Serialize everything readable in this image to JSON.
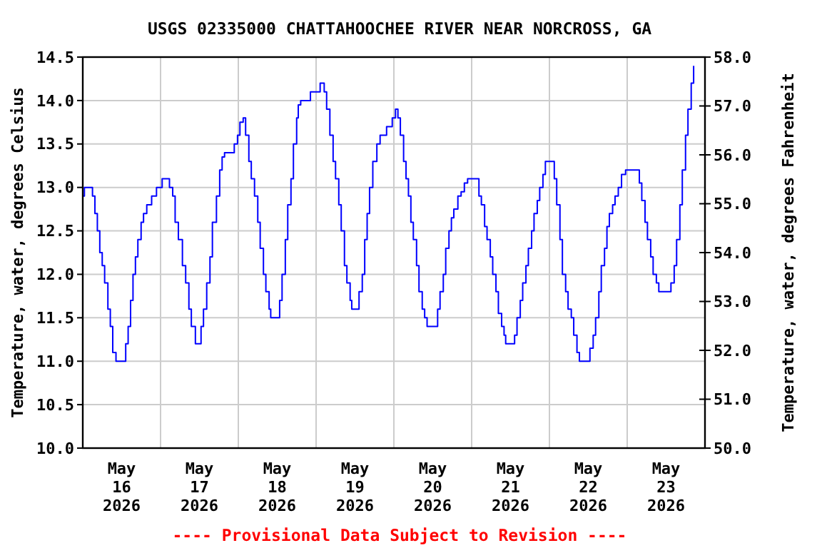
{
  "chart_data": {
    "type": "step",
    "title": "USGS 02335000 CHATTAHOOCHEE RIVER NEAR NORCROSS, GA",
    "ylabel": "Temperature, water, degrees Celsius",
    "y2label": "Temperature, water, degrees Fahrenheit",
    "annotations": [
      "---- Provisional Data Subject to Revision ----"
    ],
    "xlim": [
      "2026-05-16T00:00",
      "2026-05-24T00:00"
    ],
    "xticks": [
      {
        "value": "2026-05-16T12:00",
        "label": "May\n16\n2026"
      },
      {
        "value": "2026-05-17T00:00",
        "label": null
      },
      {
        "value": "2026-05-17T12:00",
        "label": "May\n17\n2026"
      },
      {
        "value": "2026-05-18T00:00",
        "label": null
      },
      {
        "value": "2026-05-18T12:00",
        "label": "May\n18\n2026"
      },
      {
        "value": "2026-05-19T00:00",
        "label": null
      },
      {
        "value": "2026-05-19T12:00",
        "label": "May\n19\n2026"
      },
      {
        "value": "2026-05-20T00:00",
        "label": null
      },
      {
        "value": "2026-05-20T12:00",
        "label": "May\n20\n2026"
      },
      {
        "value": "2026-05-21T00:00",
        "label": null
      },
      {
        "value": "2026-05-21T12:00",
        "label": "May\n21\n2026"
      },
      {
        "value": "2026-05-22T00:00",
        "label": null
      },
      {
        "value": "2026-05-22T12:00",
        "label": "May\n22\n2026"
      },
      {
        "value": "2026-05-23T00:00",
        "label": null
      },
      {
        "value": "2026-05-23T12:00",
        "label": "May\n23\n2026"
      }
    ],
    "ylim": [
      10.0,
      14.5
    ],
    "yticks": [
      {
        "value": 10,
        "label": "10.0"
      },
      10.5,
      {
        "value": 11,
        "label": "11.0"
      },
      11.5,
      {
        "value": 12,
        "label": "12.0"
      },
      12.5,
      {
        "value": 13,
        "label": "13.0"
      },
      13.5,
      {
        "value": 14,
        "label": "14.0"
      },
      14.5
    ],
    "y2lim": [
      50.0,
      58.0
    ],
    "y2ticks": [
      {
        "value": 50,
        "label": "50.0"
      },
      {
        "value": 51,
        "label": "51.0"
      },
      {
        "value": 52,
        "label": "52.0"
      },
      {
        "value": 53,
        "label": "53.0"
      },
      {
        "value": 54,
        "label": "54.0"
      },
      {
        "value": 55,
        "label": "55.0"
      },
      {
        "value": 56,
        "label": "56.0"
      },
      {
        "value": 57,
        "label": "57.0"
      },
      {
        "value": 58,
        "label": "58.0"
      }
    ],
    "grid": true,
    "series": [
      {
        "color": "#0000ff",
        "x": [
          "2026-05-16T00:00",
          "2026-05-16T00:30",
          "2026-05-16T02:15",
          "2026-05-16T03:00",
          "2026-05-16T03:45",
          "2026-05-16T04:30",
          "2026-05-16T05:15",
          "2026-05-16T06:00",
          "2026-05-16T06:45",
          "2026-05-16T07:45",
          "2026-05-16T08:30",
          "2026-05-16T09:15",
          "2026-05-16T10:15",
          "2026-05-16T12:15",
          "2026-05-16T13:15",
          "2026-05-16T14:00",
          "2026-05-16T14:45",
          "2026-05-16T15:30",
          "2026-05-16T16:15",
          "2026-05-16T17:00",
          "2026-05-16T18:00",
          "2026-05-16T18:45",
          "2026-05-16T19:45",
          "2026-05-16T21:15",
          "2026-05-16T22:45",
          "2026-05-17T00:30",
          "2026-05-17T01:45",
          "2026-05-17T02:45",
          "2026-05-17T03:45",
          "2026-05-17T04:30",
          "2026-05-17T05:30",
          "2026-05-17T06:45",
          "2026-05-17T07:45",
          "2026-05-17T08:45",
          "2026-05-17T09:30",
          "2026-05-17T10:45",
          "2026-05-17T11:30",
          "2026-05-17T12:30",
          "2026-05-17T13:15",
          "2026-05-17T14:15",
          "2026-05-17T15:15",
          "2026-05-17T16:00",
          "2026-05-17T17:15",
          "2026-05-17T18:15",
          "2026-05-17T19:00",
          "2026-05-17T19:45",
          "2026-05-17T21:30",
          "2026-05-17T22:45",
          "2026-05-17T23:45",
          "2026-05-18T00:30",
          "2026-05-18T01:30",
          "2026-05-18T02:15",
          "2026-05-18T03:15",
          "2026-05-18T04:00",
          "2026-05-18T05:00",
          "2026-05-18T06:00",
          "2026-05-18T06:45",
          "2026-05-18T07:45",
          "2026-05-18T08:30",
          "2026-05-18T09:30",
          "2026-05-18T10:00",
          "2026-05-18T11:45",
          "2026-05-18T12:45",
          "2026-05-18T13:30",
          "2026-05-18T14:30",
          "2026-05-18T15:15",
          "2026-05-18T16:15",
          "2026-05-18T17:00",
          "2026-05-18T18:00",
          "2026-05-18T18:30",
          "2026-05-18T19:15",
          "2026-05-18T21:45",
          "2026-05-18T22:15",
          "2026-05-19T00:30",
          "2026-05-19T01:15",
          "2026-05-19T02:00",
          "2026-05-19T02:30",
          "2026-05-19T03:15",
          "2026-05-19T04:15",
          "2026-05-19T05:15",
          "2026-05-19T06:00",
          "2026-05-19T07:00",
          "2026-05-19T07:45",
          "2026-05-19T08:45",
          "2026-05-19T09:30",
          "2026-05-19T10:30",
          "2026-05-19T11:00",
          "2026-05-19T12:30",
          "2026-05-19T13:15",
          "2026-05-19T14:15",
          "2026-05-19T15:00",
          "2026-05-19T15:45",
          "2026-05-19T16:30",
          "2026-05-19T17:30",
          "2026-05-19T18:45",
          "2026-05-19T19:45",
          "2026-05-19T21:45",
          "2026-05-19T23:30",
          "2026-05-20T00:30",
          "2026-05-20T01:15",
          "2026-05-20T02:00",
          "2026-05-20T03:00",
          "2026-05-20T03:45",
          "2026-05-20T04:30",
          "2026-05-20T05:15",
          "2026-05-20T06:00",
          "2026-05-20T07:00",
          "2026-05-20T07:45",
          "2026-05-20T08:45",
          "2026-05-20T09:30",
          "2026-05-20T10:15",
          "2026-05-20T12:30",
          "2026-05-20T13:30",
          "2026-05-20T14:15",
          "2026-05-20T15:15",
          "2026-05-20T16:00",
          "2026-05-20T17:00",
          "2026-05-20T17:45",
          "2026-05-20T18:30",
          "2026-05-20T19:45",
          "2026-05-20T20:45",
          "2026-05-20T21:45",
          "2026-05-20T22:45",
          "2026-05-21T01:15",
          "2026-05-21T02:15",
          "2026-05-21T03:00",
          "2026-05-21T04:00",
          "2026-05-21T04:45",
          "2026-05-21T05:45",
          "2026-05-21T06:30",
          "2026-05-21T07:30",
          "2026-05-21T08:15",
          "2026-05-21T09:15",
          "2026-05-21T10:00",
          "2026-05-21T10:30",
          "2026-05-21T12:30",
          "2026-05-21T13:15",
          "2026-05-21T14:00",
          "2026-05-21T15:00",
          "2026-05-21T15:45",
          "2026-05-21T16:45",
          "2026-05-21T17:30",
          "2026-05-21T18:30",
          "2026-05-21T19:15",
          "2026-05-21T20:15",
          "2026-05-21T21:00",
          "2026-05-21T22:00",
          "2026-05-21T22:45",
          "2026-05-22T00:30",
          "2026-05-22T01:30",
          "2026-05-22T02:15",
          "2026-05-22T03:15",
          "2026-05-22T04:00",
          "2026-05-22T05:00",
          "2026-05-22T05:45",
          "2026-05-22T06:45",
          "2026-05-22T07:30",
          "2026-05-22T08:30",
          "2026-05-22T09:15",
          "2026-05-22T11:30",
          "2026-05-22T12:30",
          "2026-05-22T13:30",
          "2026-05-22T14:15",
          "2026-05-22T15:15",
          "2026-05-22T16:00",
          "2026-05-22T17:00",
          "2026-05-22T17:45",
          "2026-05-22T18:30",
          "2026-05-22T19:30",
          "2026-05-22T20:15",
          "2026-05-22T21:15",
          "2026-05-22T22:15",
          "2026-05-22T23:30",
          "2026-05-23T02:45",
          "2026-05-23T03:45",
          "2026-05-23T04:30",
          "2026-05-23T05:30",
          "2026-05-23T06:15",
          "2026-05-23T07:15",
          "2026-05-23T08:00",
          "2026-05-23T09:00",
          "2026-05-23T09:45",
          "2026-05-23T12:45",
          "2026-05-23T13:30",
          "2026-05-23T14:30",
          "2026-05-23T15:15",
          "2026-05-23T16:15",
          "2026-05-23T17:00",
          "2026-05-23T18:00",
          "2026-05-23T18:45",
          "2026-05-23T19:45",
          "2026-05-23T20:30"
        ],
        "values": [
          12.9,
          13.0,
          13.0,
          12.9,
          12.7,
          12.5,
          12.25,
          12.1,
          11.9,
          11.6,
          11.4,
          11.1,
          11.0,
          11.0,
          11.2,
          11.4,
          11.7,
          12.0,
          12.2,
          12.4,
          12.6,
          12.7,
          12.8,
          12.9,
          13.0,
          13.1,
          13.1,
          13.0,
          12.9,
          12.6,
          12.4,
          12.1,
          11.9,
          11.6,
          11.4,
          11.2,
          11.2,
          11.4,
          11.6,
          11.9,
          12.2,
          12.6,
          12.9,
          13.2,
          13.35,
          13.4,
          13.4,
          13.5,
          13.6,
          13.75,
          13.8,
          13.6,
          13.3,
          13.1,
          12.9,
          12.6,
          12.3,
          12.0,
          11.8,
          11.6,
          11.5,
          11.5,
          11.7,
          12.0,
          12.4,
          12.8,
          13.1,
          13.5,
          13.8,
          13.95,
          14.0,
          14.0,
          14.1,
          14.1,
          14.2,
          14.2,
          14.1,
          13.9,
          13.6,
          13.3,
          13.1,
          12.8,
          12.5,
          12.1,
          11.9,
          11.7,
          11.6,
          11.6,
          11.8,
          12.0,
          12.4,
          12.7,
          13.0,
          13.3,
          13.5,
          13.6,
          13.7,
          13.8,
          13.9,
          13.8,
          13.6,
          13.3,
          13.1,
          12.9,
          12.6,
          12.4,
          12.1,
          11.8,
          11.6,
          11.5,
          11.4,
          11.4,
          11.6,
          11.8,
          12.0,
          12.3,
          12.5,
          12.65,
          12.75,
          12.9,
          12.95,
          13.05,
          13.1,
          13.1,
          12.9,
          12.8,
          12.55,
          12.4,
          12.2,
          12.0,
          11.8,
          11.55,
          11.4,
          11.3,
          11.2,
          11.2,
          11.3,
          11.5,
          11.7,
          11.9,
          12.1,
          12.3,
          12.5,
          12.7,
          12.85,
          13.0,
          13.15,
          13.3,
          13.3,
          13.1,
          12.8,
          12.4,
          12.0,
          11.8,
          11.6,
          11.5,
          11.3,
          11.1,
          11.0,
          11.0,
          11.15,
          11.3,
          11.5,
          11.8,
          12.1,
          12.3,
          12.55,
          12.7,
          12.8,
          12.9,
          13.0,
          13.15,
          13.2,
          13.2,
          13.05,
          12.85,
          12.6,
          12.4,
          12.2,
          12.0,
          11.9,
          11.8,
          11.8,
          11.9,
          12.1,
          12.4,
          12.8,
          13.2,
          13.6,
          13.9,
          14.2,
          14.4
        ]
      }
    ]
  }
}
